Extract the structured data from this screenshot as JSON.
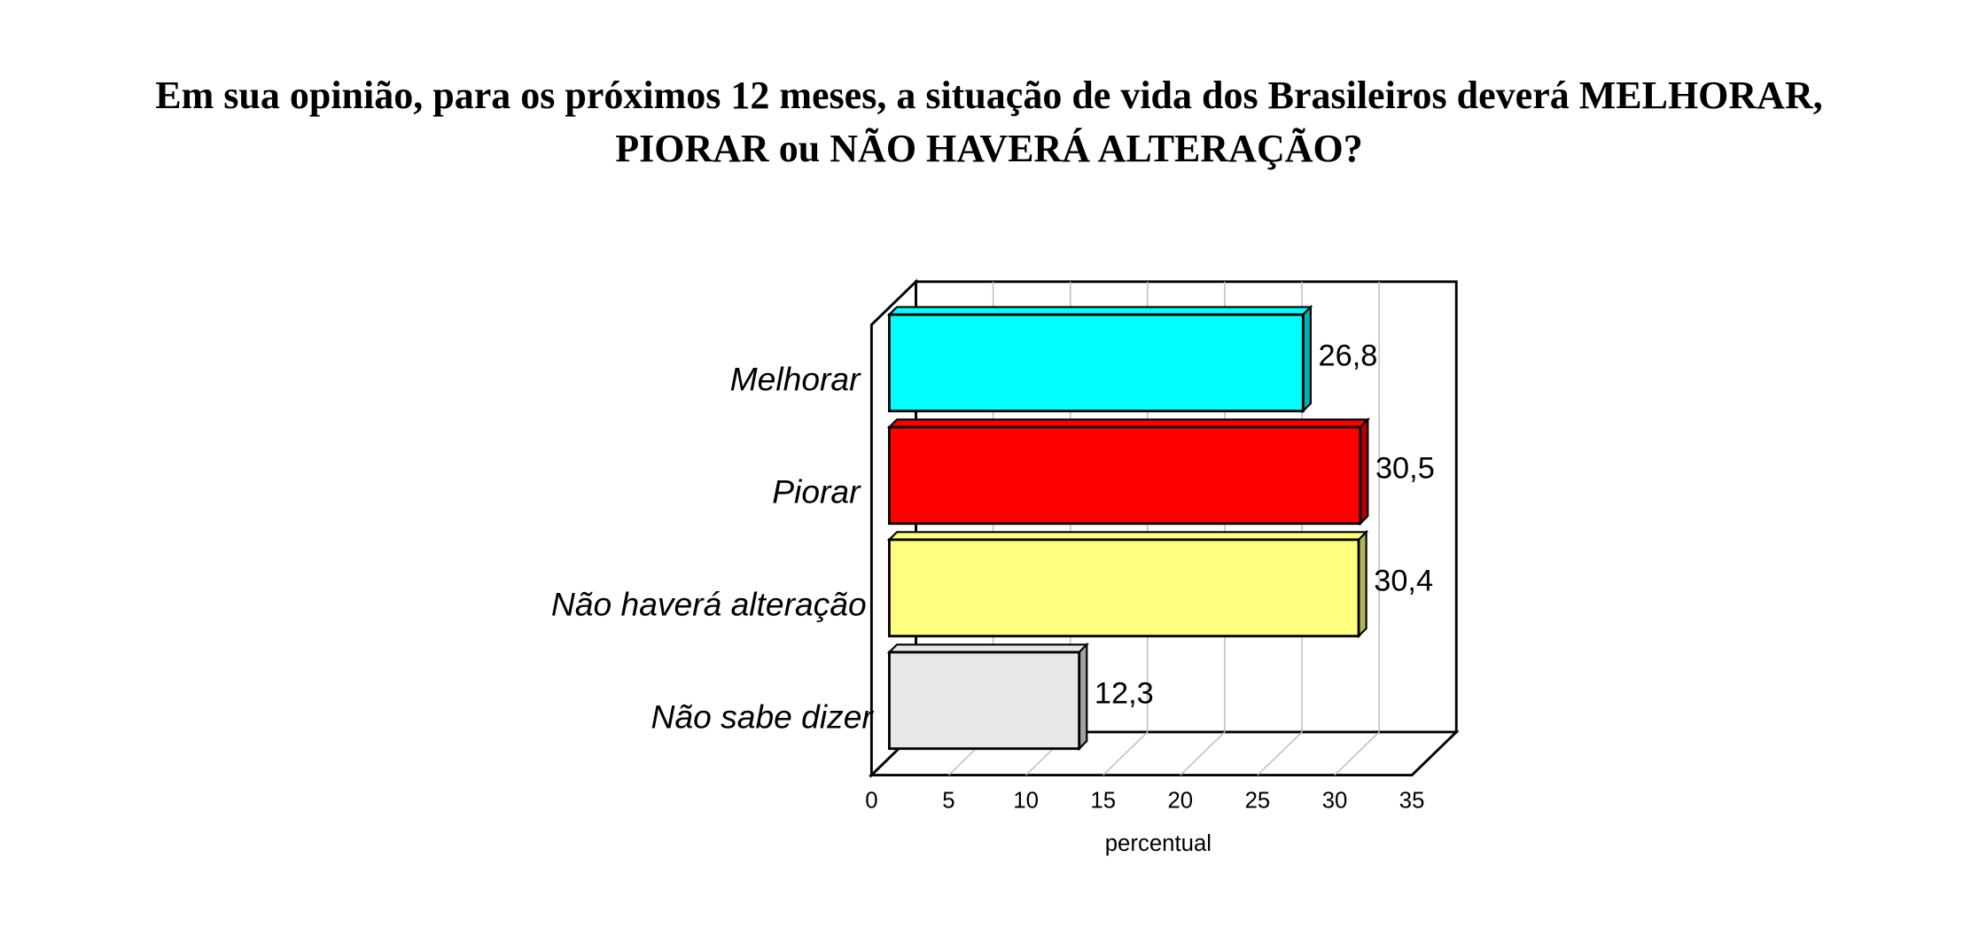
{
  "chart_data": {
    "type": "bar",
    "title": "Em sua opinião, para os próximos 12 meses, a situação de vida dos Brasileiros deverá MELHORAR, PIORAR ou NÃO HAVERÁ ALTERAÇÃO?",
    "categories": [
      "Melhorar",
      "Piorar",
      "Não haverá alteração",
      "Não sabe dizer"
    ],
    "values": [
      26.8,
      30.5,
      30.4,
      12.3
    ],
    "value_labels": [
      "26,8",
      "30,5",
      "30,4",
      "12,3"
    ],
    "colors": [
      "#00ffff",
      "#ff0000",
      "#ffff80",
      "#e8e8e8"
    ],
    "x_label": "percentual",
    "xlim": [
      0,
      35
    ],
    "xticks": [
      0,
      5,
      10,
      15,
      20,
      25,
      30,
      35
    ],
    "grid": true
  }
}
